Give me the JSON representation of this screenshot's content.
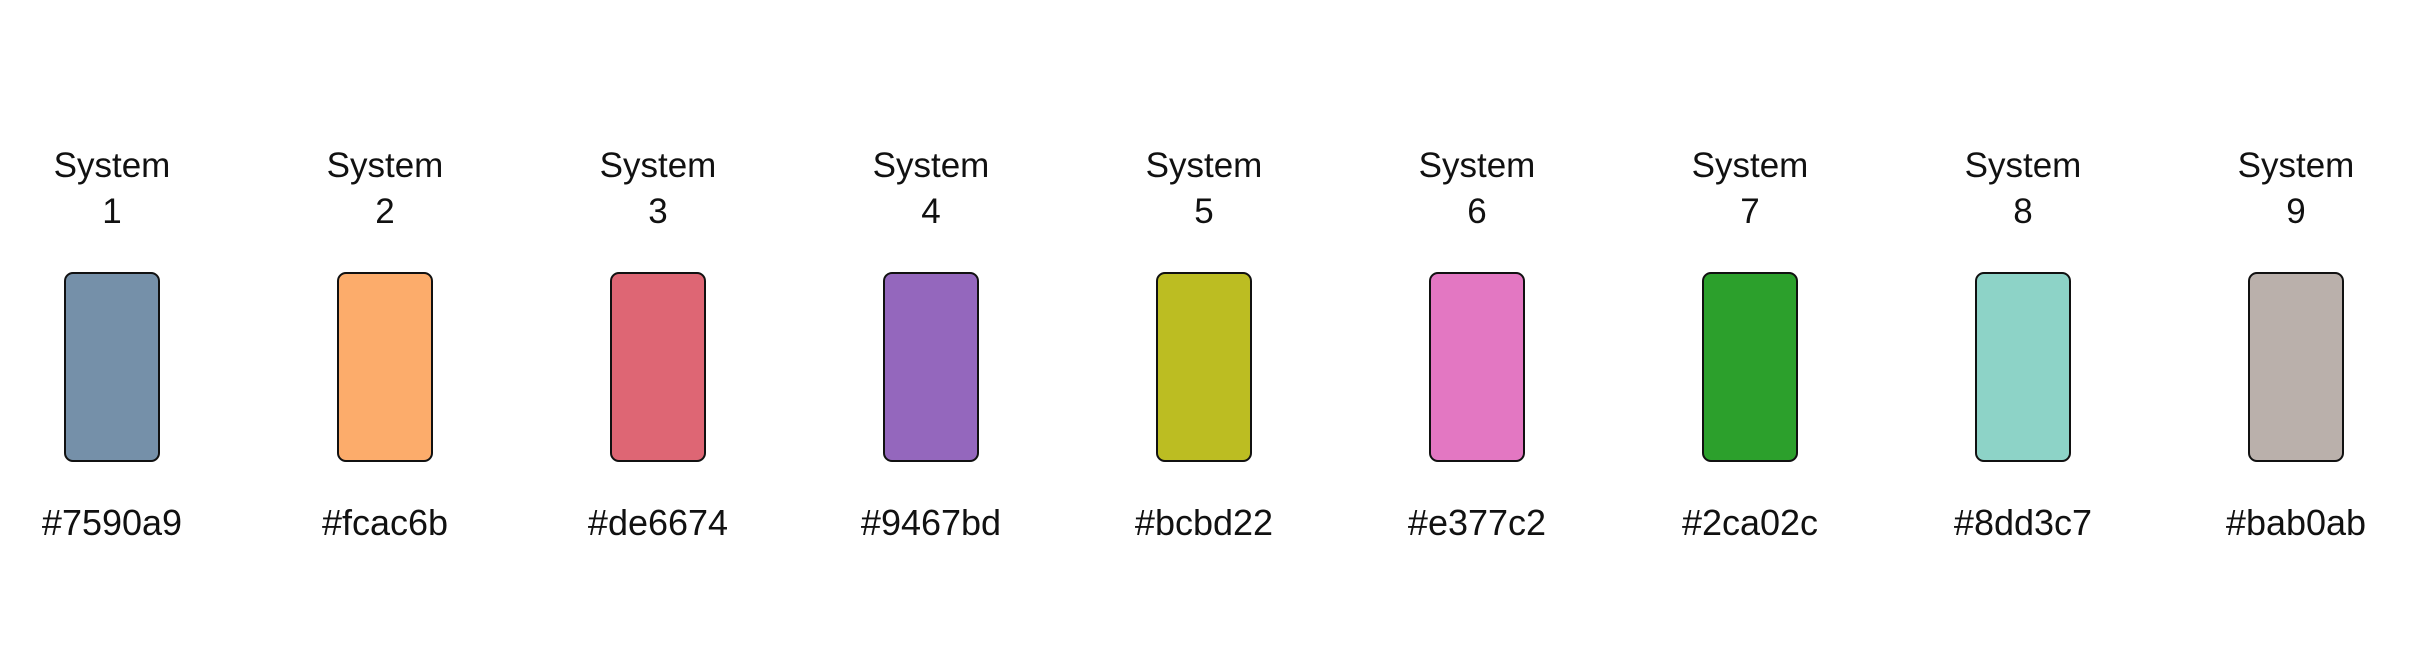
{
  "swatches": [
    {
      "label_line1": "System",
      "label_line2": "1",
      "hex": "#7590a9",
      "color": "#7590a9"
    },
    {
      "label_line1": "System",
      "label_line2": "2",
      "hex": "#fcac6b",
      "color": "#fcac6b"
    },
    {
      "label_line1": "System",
      "label_line2": "3",
      "hex": "#de6674",
      "color": "#de6674"
    },
    {
      "label_line1": "System",
      "label_line2": "4",
      "hex": "#9467bd",
      "color": "#9467bd"
    },
    {
      "label_line1": "System",
      "label_line2": "5",
      "hex": "#bcbd22",
      "color": "#bcbd22"
    },
    {
      "label_line1": "System",
      "label_line2": "6",
      "hex": "#e377c2",
      "color": "#e377c2"
    },
    {
      "label_line1": "System",
      "label_line2": "7",
      "hex": "#2ca02c",
      "color": "#2ca02c"
    },
    {
      "label_line1": "System",
      "label_line2": "8",
      "hex": "#8dd3c7",
      "color": "#8dd3c7"
    },
    {
      "label_line1": "System",
      "label_line2": "9",
      "hex": "#bab0ab",
      "color": "#bab0ab"
    }
  ]
}
